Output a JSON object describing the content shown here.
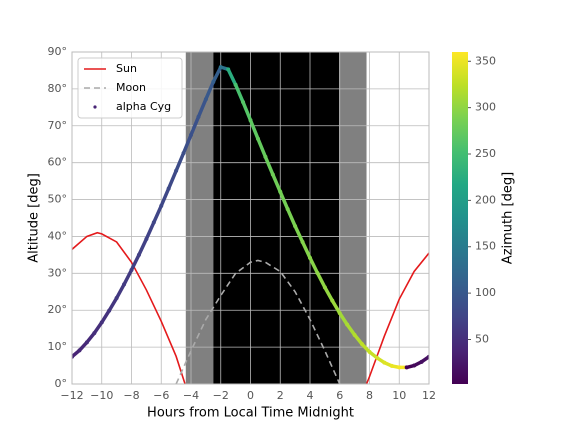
{
  "chart_data": {
    "type": "line",
    "xlabel": "Hours from Local Time Midnight",
    "ylabel": "Altitude [deg]",
    "xlim": [
      -12,
      12
    ],
    "ylim": [
      0,
      90
    ],
    "xticks": [
      {
        "value": -12,
        "label": "−12"
      },
      {
        "value": -10,
        "label": "−10"
      },
      {
        "value": -8,
        "label": "−8"
      },
      {
        "value": -6,
        "label": "−6"
      },
      {
        "value": -4,
        "label": "−4"
      },
      {
        "value": -2,
        "label": "−2"
      },
      0,
      2,
      4,
      6,
      8,
      10,
      12
    ],
    "yticks": [
      {
        "value": 0,
        "label": "0°"
      },
      {
        "value": 10,
        "label": "10°"
      },
      {
        "value": 20,
        "label": "20°"
      },
      {
        "value": 30,
        "label": "30°"
      },
      {
        "value": 40,
        "label": "40°"
      },
      {
        "value": 50,
        "label": "50°"
      },
      {
        "value": 60,
        "label": "60°"
      },
      {
        "value": 70,
        "label": "70°"
      },
      {
        "value": 80,
        "label": "80°"
      },
      {
        "value": 90,
        "label": "90°"
      }
    ],
    "grid": true,
    "legend": "upper left",
    "shading": [
      {
        "start": -4.35,
        "end": -2.5,
        "color": "#808080"
      },
      {
        "start": -2.5,
        "end": 5.95,
        "color": "#000000"
      },
      {
        "start": 5.95,
        "end": 7.8,
        "color": "#808080"
      }
    ],
    "colorbar": {
      "label": "Azimuth [deg]",
      "clim": [
        2,
        360
      ],
      "ticks": [
        50,
        100,
        150,
        200,
        250,
        300,
        350
      ]
    },
    "series": [
      {
        "name": "Sun",
        "type": "line",
        "color": "#e41a1c",
        "dash": false,
        "x": [
          -12,
          -11,
          -10.3,
          -10,
          -9,
          -8,
          -7,
          -6,
          -5,
          -4.4,
          2,
          7.8,
          8,
          9,
          10,
          11,
          12
        ],
        "values": [
          36.5,
          40,
          41,
          40.7,
          38.5,
          33,
          25.5,
          17,
          7.5,
          0,
          null,
          0,
          2,
          13,
          23,
          30.5,
          35.5
        ]
      },
      {
        "name": "Moon",
        "type": "line",
        "color": "#aaaaaa",
        "dash": true,
        "x": [
          -5,
          -4,
          -3,
          -2,
          -1,
          0,
          0.5,
          1,
          2,
          3,
          4,
          5,
          6
        ],
        "values": [
          0,
          9,
          17.5,
          24,
          30,
          33,
          33.5,
          33,
          30.5,
          25,
          17.5,
          9,
          0
        ]
      },
      {
        "name": "alpha Cyg",
        "type": "scatter",
        "x": [
          -12,
          -11.5,
          -11,
          -10.5,
          -10,
          -9.5,
          -9,
          -8.5,
          -8,
          -7.5,
          -7,
          -6.5,
          -6,
          -5.5,
          -5,
          -4.5,
          -4,
          -3.5,
          -3,
          -2.5,
          -2,
          -1.5,
          -1,
          -0.5,
          0,
          0.5,
          1,
          1.5,
          2,
          2.5,
          3,
          3.5,
          4,
          4.5,
          5,
          5.5,
          6,
          6.5,
          7,
          7.5,
          8,
          8.5,
          9,
          9.5,
          10,
          10.5,
          11,
          11.5,
          12
        ],
        "values": [
          7.4,
          9.1,
          11.3,
          13.8,
          16.7,
          19.9,
          23.3,
          27,
          30.9,
          35,
          39.3,
          43.8,
          48.3,
          53,
          57.8,
          62.6,
          67.5,
          72.4,
          77.2,
          81.9,
          85.9,
          85.3,
          81.1,
          76.4,
          71.5,
          66.5,
          61.6,
          56.8,
          52.1,
          47.4,
          42.8,
          38.5,
          34.2,
          30.1,
          26.2,
          22.6,
          19.2,
          16.1,
          13.3,
          10.8,
          8.7,
          7.1,
          5.8,
          4.9,
          4.5,
          4.5,
          5,
          6,
          7.4
        ],
        "color_values": [
          38,
          42,
          46,
          50,
          54,
          58,
          61,
          64,
          67,
          70,
          73,
          76,
          79,
          82,
          85,
          88,
          91,
          95,
          100,
          110,
          140,
          225,
          255,
          264,
          270,
          274,
          278,
          281,
          284,
          287,
          290,
          293,
          296,
          299,
          302,
          306,
          310,
          314,
          319,
          324,
          330,
          336,
          342,
          349,
          356,
          3,
          10,
          16,
          22
        ]
      }
    ]
  }
}
